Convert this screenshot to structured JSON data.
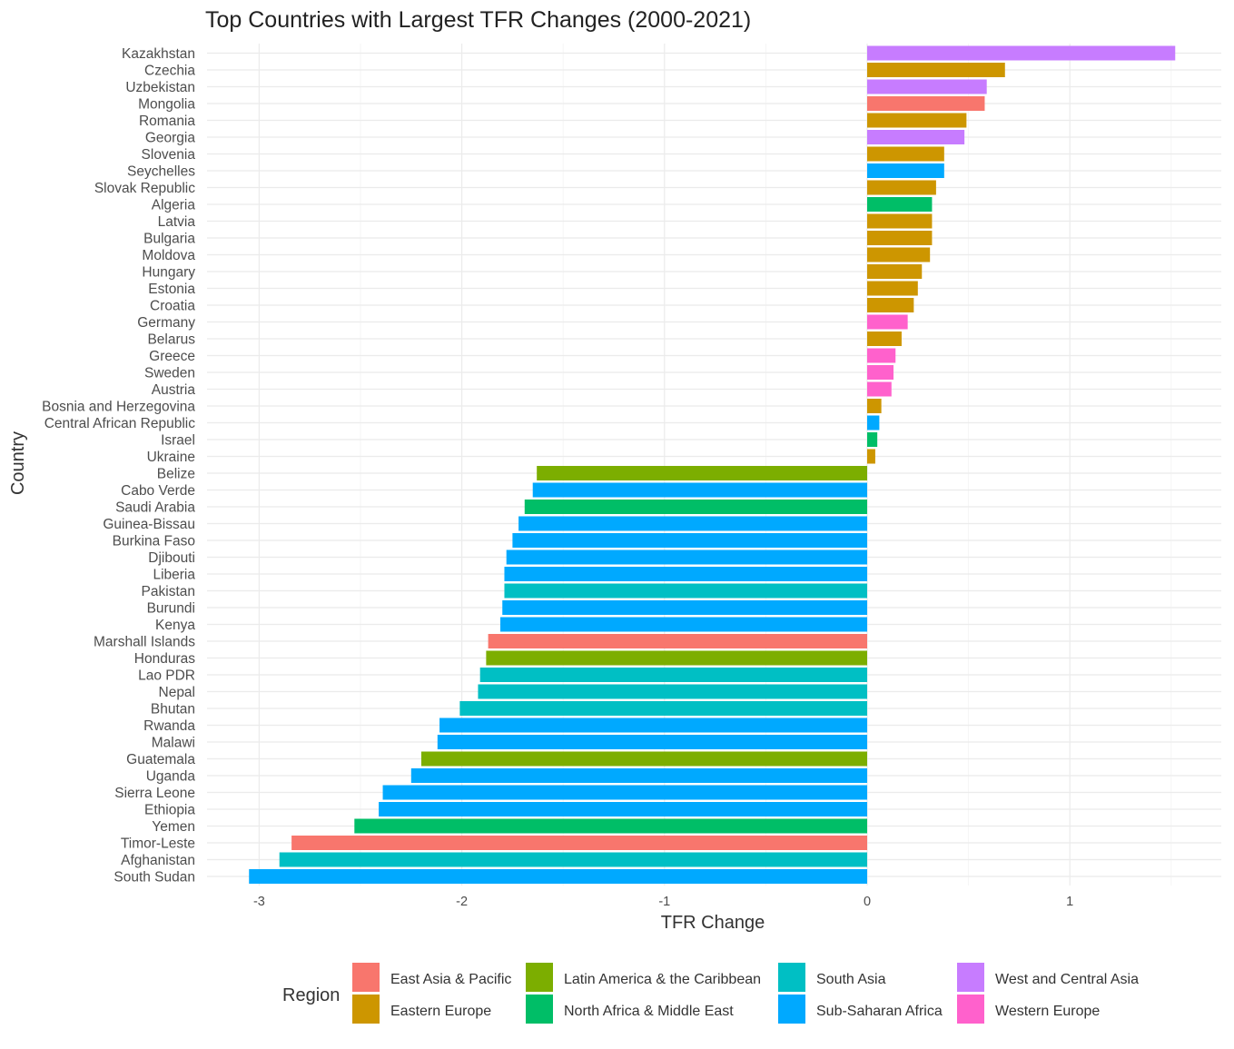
{
  "chart_data": {
    "type": "bar",
    "orientation": "horizontal",
    "title": "Top Countries with Largest TFR Changes (2000-2021)",
    "xlabel": "TFR Change",
    "ylabel": "Country",
    "xlim": [
      -3.1,
      1.75
    ],
    "xticks": [
      -3,
      -2,
      -1,
      0,
      1
    ],
    "grid": true,
    "legend": {
      "title": "Region",
      "position": "bottom",
      "entries": [
        {
          "name": "East Asia & Pacific",
          "color": "#F8766D"
        },
        {
          "name": "Eastern Europe",
          "color": "#CD9600"
        },
        {
          "name": "Latin America & the Caribbean",
          "color": "#7CAE00"
        },
        {
          "name": "North Africa & Middle East",
          "color": "#00BE67"
        },
        {
          "name": "South Asia",
          "color": "#00BFC4"
        },
        {
          "name": "Sub-Saharan Africa",
          "color": "#00A9FF"
        },
        {
          "name": "West and Central Asia",
          "color": "#C77CFF"
        },
        {
          "name": "Western Europe",
          "color": "#FF61CC"
        }
      ]
    },
    "bars": [
      {
        "country": "Kazakhstan",
        "value": 1.52,
        "region": "West and Central Asia"
      },
      {
        "country": "Czechia",
        "value": 0.68,
        "region": "Eastern Europe"
      },
      {
        "country": "Uzbekistan",
        "value": 0.59,
        "region": "West and Central Asia"
      },
      {
        "country": "Mongolia",
        "value": 0.58,
        "region": "East Asia & Pacific"
      },
      {
        "country": "Romania",
        "value": 0.49,
        "region": "Eastern Europe"
      },
      {
        "country": "Georgia",
        "value": 0.48,
        "region": "West and Central Asia"
      },
      {
        "country": "Slovenia",
        "value": 0.38,
        "region": "Eastern Europe"
      },
      {
        "country": "Seychelles",
        "value": 0.38,
        "region": "Sub-Saharan Africa"
      },
      {
        "country": "Slovak Republic",
        "value": 0.34,
        "region": "Eastern Europe"
      },
      {
        "country": "Algeria",
        "value": 0.32,
        "region": "North Africa & Middle East"
      },
      {
        "country": "Latvia",
        "value": 0.32,
        "region": "Eastern Europe"
      },
      {
        "country": "Bulgaria",
        "value": 0.32,
        "region": "Eastern Europe"
      },
      {
        "country": "Moldova",
        "value": 0.31,
        "region": "Eastern Europe"
      },
      {
        "country": "Hungary",
        "value": 0.27,
        "region": "Eastern Europe"
      },
      {
        "country": "Estonia",
        "value": 0.25,
        "region": "Eastern Europe"
      },
      {
        "country": "Croatia",
        "value": 0.23,
        "region": "Eastern Europe"
      },
      {
        "country": "Germany",
        "value": 0.2,
        "region": "Western Europe"
      },
      {
        "country": "Belarus",
        "value": 0.17,
        "region": "Eastern Europe"
      },
      {
        "country": "Greece",
        "value": 0.14,
        "region": "Western Europe"
      },
      {
        "country": "Sweden",
        "value": 0.13,
        "region": "Western Europe"
      },
      {
        "country": "Austria",
        "value": 0.12,
        "region": "Western Europe"
      },
      {
        "country": "Bosnia and Herzegovina",
        "value": 0.07,
        "region": "Eastern Europe"
      },
      {
        "country": "Central African Republic",
        "value": 0.06,
        "region": "Sub-Saharan Africa"
      },
      {
        "country": "Israel",
        "value": 0.05,
        "region": "North Africa & Middle East"
      },
      {
        "country": "Ukraine",
        "value": 0.04,
        "region": "Eastern Europe"
      },
      {
        "country": "Belize",
        "value": -1.63,
        "region": "Latin America & the Caribbean"
      },
      {
        "country": "Cabo Verde",
        "value": -1.65,
        "region": "Sub-Saharan Africa"
      },
      {
        "country": "Saudi Arabia",
        "value": -1.69,
        "region": "North Africa & Middle East"
      },
      {
        "country": "Guinea-Bissau",
        "value": -1.72,
        "region": "Sub-Saharan Africa"
      },
      {
        "country": "Burkina Faso",
        "value": -1.75,
        "region": "Sub-Saharan Africa"
      },
      {
        "country": "Djibouti",
        "value": -1.78,
        "region": "Sub-Saharan Africa"
      },
      {
        "country": "Liberia",
        "value": -1.79,
        "region": "Sub-Saharan Africa"
      },
      {
        "country": "Pakistan",
        "value": -1.79,
        "region": "South Asia"
      },
      {
        "country": "Burundi",
        "value": -1.8,
        "region": "Sub-Saharan Africa"
      },
      {
        "country": "Kenya",
        "value": -1.81,
        "region": "Sub-Saharan Africa"
      },
      {
        "country": "Marshall Islands",
        "value": -1.87,
        "region": "East Asia & Pacific"
      },
      {
        "country": "Honduras",
        "value": -1.88,
        "region": "Latin America & the Caribbean"
      },
      {
        "country": "Lao PDR",
        "value": -1.91,
        "region": "South Asia"
      },
      {
        "country": "Nepal",
        "value": -1.92,
        "region": "South Asia"
      },
      {
        "country": "Bhutan",
        "value": -2.01,
        "region": "South Asia"
      },
      {
        "country": "Rwanda",
        "value": -2.11,
        "region": "Sub-Saharan Africa"
      },
      {
        "country": "Malawi",
        "value": -2.12,
        "region": "Sub-Saharan Africa"
      },
      {
        "country": "Guatemala",
        "value": -2.2,
        "region": "Latin America & the Caribbean"
      },
      {
        "country": "Uganda",
        "value": -2.25,
        "region": "Sub-Saharan Africa"
      },
      {
        "country": "Sierra Leone",
        "value": -2.39,
        "region": "Sub-Saharan Africa"
      },
      {
        "country": "Ethiopia",
        "value": -2.41,
        "region": "Sub-Saharan Africa"
      },
      {
        "country": "Yemen",
        "value": -2.53,
        "region": "North Africa & Middle East"
      },
      {
        "country": "Timor-Leste",
        "value": -2.84,
        "region": "East Asia & Pacific"
      },
      {
        "country": "Afghanistan",
        "value": -2.9,
        "region": "South Asia"
      },
      {
        "country": "South Sudan",
        "value": -3.05,
        "region": "Sub-Saharan Africa"
      }
    ]
  }
}
